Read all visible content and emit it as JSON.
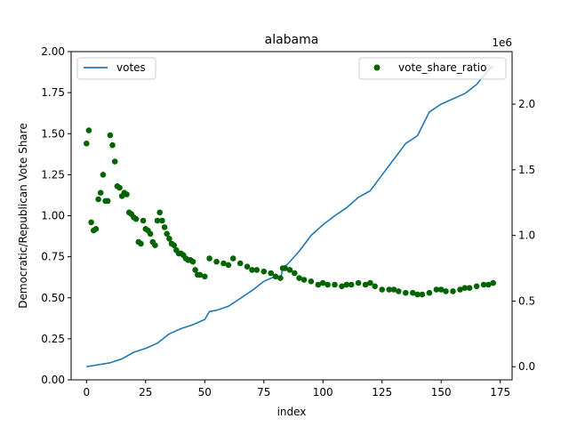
{
  "chart_data": {
    "type": "line",
    "title": "alabama",
    "xlabel": "index",
    "ylabel": "Democratic/Republican Vote Share",
    "y2label": "",
    "y2_offset_text": "1e6",
    "xlim": [
      -6.5,
      180
    ],
    "ylim": [
      0,
      2.0
    ],
    "y2lim": [
      -100000,
      2400000
    ],
    "xticks": [
      0,
      25,
      50,
      75,
      100,
      125,
      150,
      175
    ],
    "yticks": [
      0.0,
      0.25,
      0.5,
      0.75,
      1.0,
      1.25,
      1.5,
      1.75,
      2.0
    ],
    "ytick_labels": [
      "0.00",
      "0.25",
      "0.50",
      "0.75",
      "1.00",
      "1.25",
      "1.50",
      "1.75",
      "2.00"
    ],
    "y2ticks": [
      0,
      500000,
      1000000,
      1500000,
      2000000
    ],
    "y2tick_labels": [
      "0.0",
      "0.5",
      "1.0",
      "1.5",
      "2.0"
    ],
    "grid": false,
    "series": [
      {
        "name": "votes",
        "kind": "line",
        "axis": "right",
        "color": "#1f77b4",
        "x": [
          0,
          5,
          10,
          15,
          20,
          25,
          30,
          35,
          40,
          45,
          50,
          52,
          55,
          60,
          65,
          70,
          75,
          80,
          82,
          83,
          85,
          90,
          95,
          100,
          105,
          110,
          115,
          120,
          125,
          130,
          135,
          140,
          145,
          150,
          155,
          160,
          165,
          170,
          172
        ],
        "y": [
          0,
          15000,
          30000,
          60000,
          110000,
          140000,
          180000,
          250000,
          290000,
          320000,
          360000,
          420000,
          430000,
          460000,
          520000,
          580000,
          650000,
          690000,
          660000,
          750000,
          780000,
          880000,
          1000000,
          1080000,
          1150000,
          1210000,
          1290000,
          1340000,
          1460000,
          1580000,
          1700000,
          1760000,
          1940000,
          2000000,
          2040000,
          2080000,
          2150000,
          2260000,
          2290000
        ]
      },
      {
        "name": "vote_share_ratio",
        "kind": "scatter",
        "axis": "left",
        "color": "#006400",
        "x": [
          0,
          1,
          2,
          3,
          4,
          5,
          6,
          7,
          8,
          9,
          10,
          11,
          12,
          13,
          14,
          15,
          16,
          17,
          18,
          19,
          20,
          21,
          22,
          23,
          24,
          25,
          26,
          27,
          28,
          29,
          30,
          31,
          32,
          33,
          34,
          35,
          36,
          37,
          38,
          39,
          40,
          41,
          42,
          43,
          44,
          45,
          46,
          47,
          48,
          50,
          52,
          55,
          58,
          60,
          62,
          65,
          68,
          70,
          72,
          75,
          78,
          80,
          82,
          83,
          84,
          86,
          88,
          90,
          92,
          95,
          98,
          100,
          102,
          105,
          108,
          110,
          112,
          115,
          118,
          120,
          122,
          125,
          128,
          130,
          132,
          135,
          138,
          140,
          142,
          145,
          148,
          150,
          152,
          155,
          158,
          160,
          162,
          165,
          168,
          170,
          172
        ],
        "y": [
          1.44,
          1.52,
          0.96,
          0.91,
          0.92,
          1.1,
          1.14,
          1.25,
          1.09,
          1.09,
          1.49,
          1.43,
          1.33,
          1.18,
          1.17,
          1.12,
          1.14,
          1.13,
          1.02,
          1.01,
          0.99,
          0.98,
          0.84,
          0.83,
          0.97,
          0.92,
          0.91,
          0.89,
          0.84,
          0.82,
          0.97,
          1.02,
          0.97,
          0.93,
          0.89,
          0.86,
          0.83,
          0.82,
          0.79,
          0.77,
          0.77,
          0.76,
          0.74,
          0.73,
          0.73,
          0.72,
          0.67,
          0.64,
          0.64,
          0.63,
          0.74,
          0.72,
          0.71,
          0.7,
          0.74,
          0.71,
          0.69,
          0.67,
          0.67,
          0.66,
          0.65,
          0.63,
          0.62,
          0.68,
          0.68,
          0.67,
          0.65,
          0.62,
          0.61,
          0.6,
          0.58,
          0.59,
          0.58,
          0.58,
          0.57,
          0.58,
          0.58,
          0.59,
          0.58,
          0.59,
          0.57,
          0.55,
          0.55,
          0.55,
          0.54,
          0.53,
          0.53,
          0.52,
          0.52,
          0.53,
          0.55,
          0.55,
          0.54,
          0.54,
          0.55,
          0.56,
          0.56,
          0.57,
          0.58,
          0.58,
          0.59
        ]
      }
    ],
    "legends": [
      {
        "placement": "top-left",
        "entries": [
          "votes"
        ]
      },
      {
        "placement": "top-right",
        "entries": [
          "vote_share_ratio"
        ]
      }
    ]
  }
}
